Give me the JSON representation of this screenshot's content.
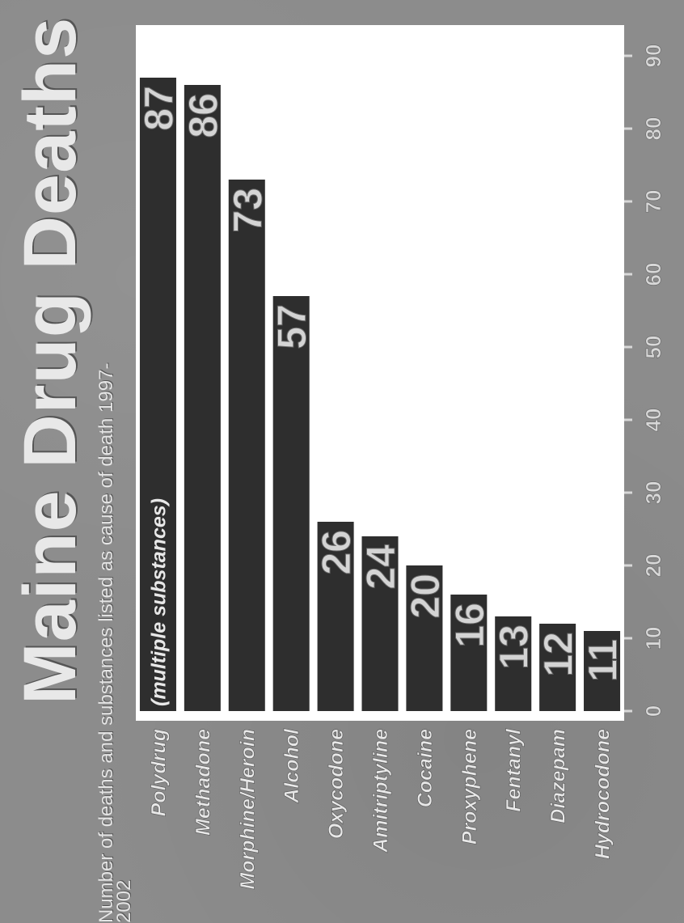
{
  "chart_data": {
    "type": "bar",
    "orientation": "horizontal",
    "title": "Maine Drug Deaths",
    "subtitle": "Number of deaths and substances listed as cause of death 1997-2002",
    "categories": [
      "Polydrug",
      "Methadone",
      "Morphine/Heroin",
      "Alcohol",
      "Oxycodone",
      "Amitriptyline",
      "Cocaine",
      "Proxyphene",
      "Fentanyl",
      "Diazepam",
      "Hydrocodone"
    ],
    "values": [
      87,
      86,
      73,
      57,
      26,
      24,
      20,
      16,
      13,
      12,
      11
    ],
    "annotation": "(multiple substances)",
    "xlim": [
      0,
      90
    ],
    "ticks": [
      0,
      10,
      20,
      30,
      40,
      50,
      60,
      70,
      80,
      90
    ],
    "grid": false,
    "colors": {
      "background": "#8c8c8c",
      "plot": "#ffffff",
      "bar": "#2e2e2e",
      "text": "#e8e8e8"
    }
  }
}
